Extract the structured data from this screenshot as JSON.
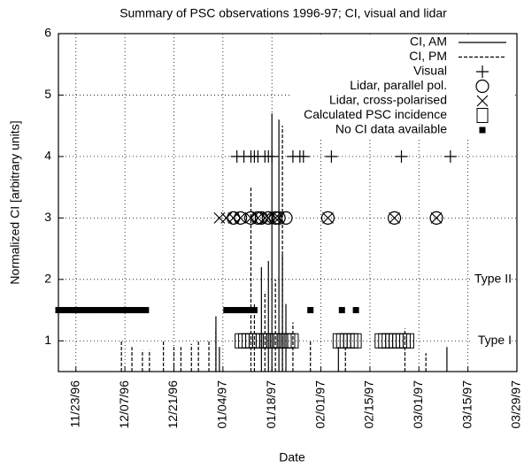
{
  "chart_data": {
    "type": "scatter",
    "title": "Summary of PSC observations 1996-97; CI, visual and lidar",
    "x_label": "Date",
    "y_label": "Normalized CI [arbitrary units]",
    "xlim": [
      "11/18/96",
      "03/29/97"
    ],
    "xticks": [
      "11/23/96",
      "12/07/96",
      "12/21/96",
      "01/04/97",
      "01/18/97",
      "02/01/97",
      "02/15/97",
      "03/01/97",
      "03/15/97",
      "03/29/97"
    ],
    "ylim": [
      0.5,
      6
    ],
    "yticks": [
      1,
      2,
      3,
      4,
      5,
      6
    ],
    "grid": true,
    "legend": "top-right",
    "annotations": [
      {
        "text": "Type II",
        "y": 2
      },
      {
        "text": "Type I",
        "y": 1
      }
    ],
    "series": [
      {
        "name": "CI, AM",
        "style": "line-solid",
        "color": "#000",
        "x": [
          "01/02/97",
          "01/03/97",
          "01/15/97",
          "01/17/97",
          "01/18/97",
          "01/20/97",
          "01/21/97",
          "01/22/97",
          "02/06/97",
          "03/09/97"
        ],
        "values": [
          1.4,
          0.9,
          2.2,
          2.3,
          4.7,
          4.6,
          2.4,
          1.6,
          0.9,
          0.9
        ]
      },
      {
        "name": "CI, PM",
        "style": "line-dashed",
        "color": "#000",
        "x": [
          "12/06/96",
          "12/09/96",
          "12/12/96",
          "12/14/96",
          "12/18/96",
          "12/21/96",
          "12/23/96",
          "12/26/96",
          "12/28/96",
          "12/31/96",
          "01/02/97",
          "01/12/97",
          "01/13/97",
          "01/16/97",
          "01/19/97",
          "01/21/97",
          "01/24/97",
          "01/29/97",
          "02/08/97",
          "02/25/97",
          "03/03/97"
        ],
        "values": [
          1.0,
          0.9,
          0.85,
          0.85,
          1.0,
          0.9,
          0.9,
          0.95,
          1.0,
          1.0,
          1.2,
          3.5,
          1.6,
          1.8,
          2.0,
          4.5,
          1.3,
          1.0,
          0.9,
          1.2,
          0.8
        ]
      },
      {
        "name": "Visual",
        "style": "plus",
        "color": "#000",
        "x": [
          "01/08/97",
          "01/10/97",
          "01/12/97",
          "01/13/97",
          "01/14/97",
          "01/16/97",
          "01/17/97",
          "01/18/97",
          "01/24/97",
          "01/26/97",
          "01/27/97",
          "02/04/97",
          "02/24/97",
          "03/10/97"
        ],
        "values": [
          4,
          4,
          4,
          4,
          4,
          4,
          4,
          4,
          4,
          4,
          4,
          4,
          4,
          4
        ]
      },
      {
        "name": "Lidar, parallel pol.",
        "style": "circle",
        "color": "#000",
        "x": [
          "01/07/97",
          "01/09/97",
          "01/12/97",
          "01/14/97",
          "01/15/97",
          "01/17/97",
          "01/19/97",
          "01/20/97",
          "01/22/97",
          "02/03/97",
          "02/22/97",
          "03/06/97"
        ],
        "values": [
          3,
          3,
          3,
          3,
          3,
          3,
          3,
          3,
          3,
          3,
          3,
          3
        ]
      },
      {
        "name": "Lidar, cross-polarised",
        "style": "cross",
        "color": "#000",
        "x": [
          "01/03/97",
          "01/05/97",
          "01/07/97",
          "01/09/97",
          "01/12/97",
          "01/14/97",
          "01/16/97",
          "01/17/97",
          "01/19/97",
          "01/20/97",
          "02/03/97",
          "02/22/97",
          "03/06/97"
        ],
        "values": [
          3,
          3,
          3,
          3,
          3,
          3,
          3,
          3,
          3,
          3,
          3,
          3,
          3
        ]
      },
      {
        "name": "Calculated PSC incidence",
        "style": "square-open",
        "color": "#000",
        "x": [
          "01/09/97",
          "01/10/97",
          "01/11/97",
          "01/12/97",
          "01/13/97",
          "01/14/97",
          "01/15/97",
          "01/16/97",
          "01/17/97",
          "01/18/97",
          "01/19/97",
          "01/20/97",
          "01/21/97",
          "01/22/97",
          "01/23/97",
          "01/24/97",
          "02/06/97",
          "02/07/97",
          "02/08/97",
          "02/09/97",
          "02/10/97",
          "02/11/97",
          "02/18/97",
          "02/19/97",
          "02/20/97",
          "02/21/97",
          "02/22/97",
          "02/23/97",
          "02/24/97",
          "02/25/97",
          "02/26/97"
        ],
        "values": [
          1,
          1,
          1,
          1,
          1,
          1,
          1,
          1,
          1,
          1,
          1,
          1,
          1,
          1,
          1,
          1,
          1,
          1,
          1,
          1,
          1,
          1,
          1,
          1,
          1,
          1,
          1,
          1,
          1,
          1,
          1
        ]
      },
      {
        "name": "No CI data available",
        "style": "square-filled",
        "color": "#000",
        "x": [
          "11/18/96",
          "11/19/96",
          "11/20/96",
          "11/21/96",
          "11/22/96",
          "11/23/96",
          "11/24/96",
          "11/25/96",
          "11/26/96",
          "11/27/96",
          "11/28/96",
          "11/29/96",
          "11/30/96",
          "12/01/96",
          "12/02/96",
          "12/03/96",
          "12/04/96",
          "12/05/96",
          "12/06/96",
          "12/07/96",
          "12/08/96",
          "12/09/96",
          "12/10/96",
          "12/11/96",
          "12/12/96",
          "12/13/96",
          "01/05/97",
          "01/06/97",
          "01/07/97",
          "01/08/97",
          "01/09/97",
          "01/10/97",
          "01/11/97",
          "01/12/97",
          "01/13/97",
          "01/29/97",
          "02/07/97",
          "02/11/97"
        ],
        "values": [
          1.5,
          1.5,
          1.5,
          1.5,
          1.5,
          1.5,
          1.5,
          1.5,
          1.5,
          1.5,
          1.5,
          1.5,
          1.5,
          1.5,
          1.5,
          1.5,
          1.5,
          1.5,
          1.5,
          1.5,
          1.5,
          1.5,
          1.5,
          1.5,
          1.5,
          1.5,
          1.5,
          1.5,
          1.5,
          1.5,
          1.5,
          1.5,
          1.5,
          1.5,
          1.5,
          1.5,
          1.5,
          1.5
        ]
      }
    ]
  }
}
